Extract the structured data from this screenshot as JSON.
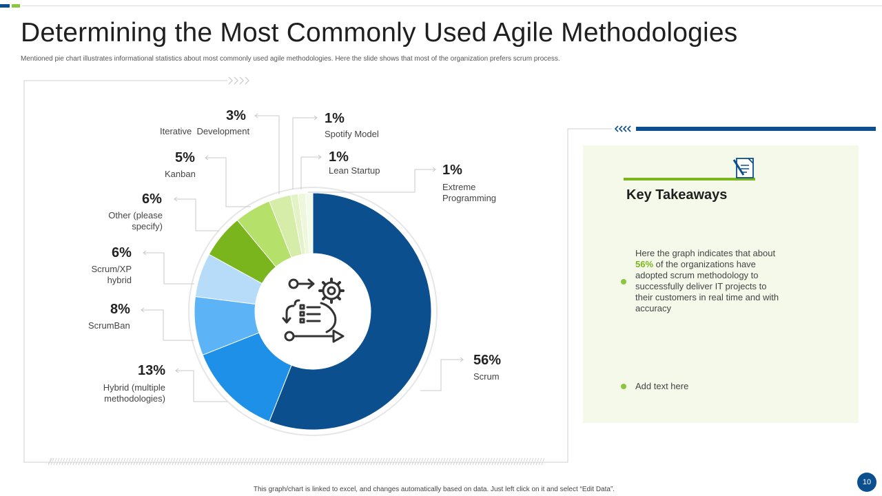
{
  "title": "Determining the Most Commonly Used Agile Methodologies",
  "subtitle": "Mentioned pie chart illustrates informational statistics about most commonly used agile methodologies. Here the slide shows that most of the organization prefers scrum process.",
  "footer": "This graph/chart is linked to excel, and changes automatically based on data. Just left click on it and select “Edit Data”.",
  "page_number": "10",
  "key_takeaways": {
    "title": "Key Takeaways",
    "text_before": "Here the graph indicates that about ",
    "highlight": "56%",
    "text_after": " of the organizations have adopted scrum methodology to successfully deliver IT projects to their customers in real time and with accuracy",
    "item2": "Add text here"
  },
  "chart_data": {
    "type": "pie",
    "donut": true,
    "slices": [
      {
        "label": "Scrum",
        "value": 56,
        "pct_label": "56%",
        "color": "#0b4f8f"
      },
      {
        "label": "Hybrid (multiple methodologies)",
        "value": 13,
        "pct_label": "13%",
        "color": "#1e90e8"
      },
      {
        "label": "ScrumBan",
        "value": 8,
        "pct_label": "8%",
        "color": "#5cb3f5"
      },
      {
        "label": "Scrum/XP hybrid",
        "value": 6,
        "pct_label": "6%",
        "color": "#b6dcfa"
      },
      {
        "label": "Other (please specify)",
        "value": 6,
        "pct_label": "6%",
        "color": "#7ab51d"
      },
      {
        "label": "Kanban",
        "value": 5,
        "pct_label": "5%",
        "color": "#b5e06a"
      },
      {
        "label": "Iterative Development",
        "value": 3,
        "pct_label": "3%",
        "color": "#d5eda8"
      },
      {
        "label": "Spotify Model",
        "value": 1,
        "pct_label": "1%",
        "color": "#e4f3c6"
      },
      {
        "label": "Lean Startup",
        "value": 1,
        "pct_label": "1%",
        "color": "#edf7da"
      },
      {
        "label": "Extreme Programming",
        "value": 1,
        "pct_label": "1%",
        "color": "#f5fbea"
      }
    ],
    "labels": {
      "scrum": {
        "pct": "56%",
        "name": "Scrum"
      },
      "hybrid": {
        "pct": "13%",
        "name1": "Hybrid (multiple",
        "name2": "methodologies)"
      },
      "scrumban": {
        "pct": "8%",
        "name": "ScrumBan"
      },
      "scrumxp": {
        "pct": "6%",
        "name1": "Scrum/XP",
        "name2": "hybrid"
      },
      "other": {
        "pct": "6%",
        "name1": "Other (please",
        "name2": "specify)"
      },
      "kanban": {
        "pct": "5%",
        "name": "Kanban"
      },
      "iterative": {
        "pct": "3%",
        "name": "Iterative  Development"
      },
      "spotify": {
        "pct": "1%",
        "name": "Spotify Model"
      },
      "lean": {
        "pct": "1%",
        "name": "Lean Startup"
      },
      "xp": {
        "pct": "1%",
        "name1": "Extreme",
        "name2": "Programming"
      }
    }
  }
}
